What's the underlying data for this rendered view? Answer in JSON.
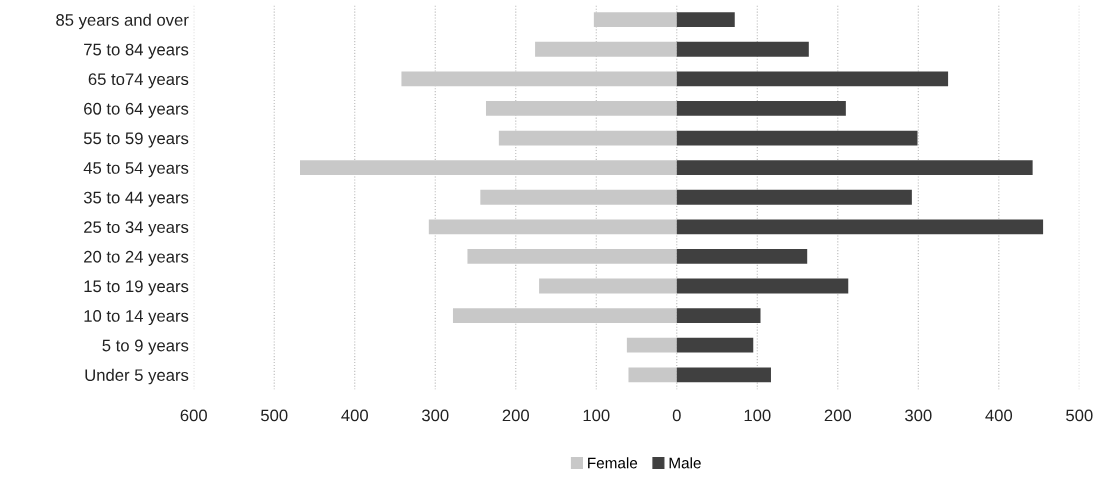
{
  "chart_data": {
    "type": "bar",
    "orientation": "horizontal",
    "categories": [
      "85 years and over",
      "75 to 84 years",
      "65 to74 years",
      "60 to 64 years",
      "55 to 59 years",
      "45 to 54 years",
      "35 to 44 years",
      "25 to 34 years",
      "20 to 24 years",
      "15 to 19 years",
      "10 to 14 years",
      "5 to 9 years",
      "Under 5 years"
    ],
    "series": [
      {
        "name": "Female",
        "color": "#c8c8c8",
        "values": [
          -103,
          -176,
          -342,
          -237,
          -221,
          -468,
          -244,
          -308,
          -260,
          -171,
          -278,
          -62,
          -60
        ]
      },
      {
        "name": "Male",
        "color": "#404040",
        "values": [
          72,
          164,
          337,
          210,
          299,
          442,
          292,
          455,
          162,
          213,
          104,
          95,
          117
        ]
      }
    ],
    "xlim": [
      -600,
      500
    ],
    "xticks": [
      {
        "value": -600,
        "label": "600"
      },
      {
        "value": -500,
        "label": "500"
      },
      {
        "value": -400,
        "label": "400"
      },
      {
        "value": -300,
        "label": "300"
      },
      {
        "value": -200,
        "label": "200"
      },
      {
        "value": -100,
        "label": "100"
      },
      0,
      100,
      200,
      300,
      400,
      500
    ],
    "grid": "x",
    "legend": "bottom",
    "stacked": true
  }
}
